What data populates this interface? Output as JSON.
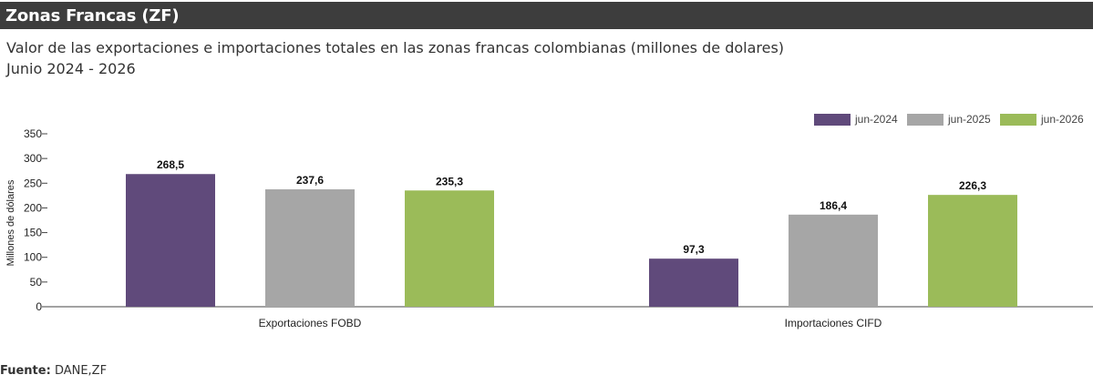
{
  "header": {
    "title": "Zonas Francas (ZF)"
  },
  "subtitle": {
    "line1": "Valor de las exportaciones e importaciones totales en las zonas francas colombianas (millones de dolares)",
    "line2": "Junio 2024 - 2026"
  },
  "source": {
    "label": "Fuente:",
    "text": "DANE,ZF"
  },
  "colors": {
    "header_bg": "#3d3d3d",
    "jun-2024": "#604a7b",
    "jun-2025": "#a6a6a6",
    "jun-2026": "#9bbb59"
  },
  "chart_data": {
    "type": "bar",
    "categories": [
      "Exportaciones FOBD",
      "Importaciones CIFD"
    ],
    "series": [
      {
        "name": "jun-2024",
        "color": "#604a7b",
        "values": [
          268.5,
          97.3
        ],
        "labels": [
          "268,5",
          "97,3"
        ]
      },
      {
        "name": "jun-2025",
        "color": "#a6a6a6",
        "values": [
          237.6,
          186.4
        ],
        "labels": [
          "237,6",
          "186,4"
        ]
      },
      {
        "name": "jun-2026",
        "color": "#9bbb59",
        "values": [
          235.3,
          226.3
        ],
        "labels": [
          "235,3",
          "226,3"
        ]
      }
    ],
    "ylabel": "Millones de dólares",
    "xlabel": "",
    "ylim": [
      0,
      350
    ],
    "yticks": [
      0,
      50,
      100,
      150,
      200,
      250,
      300,
      350
    ],
    "grid": false,
    "legend_position": "top-right"
  }
}
